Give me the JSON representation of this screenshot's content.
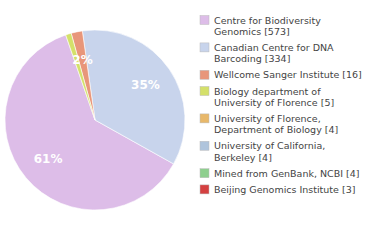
{
  "chart_data": {
    "type": "pie",
    "categories": [
      "Centre for Biodiversity\nGenomics [573]",
      "Canadian Centre for DNA\nBarcoding [334]",
      "Wellcome Sanger Institute [16]",
      "Biology department of\nUniversity of Florence [5]",
      "University of Florence,\nDepartment of Biology [4]",
      "University of California,\nBerkeley [4]",
      "Mined from GenBank, NCBI [4]",
      "Beijing Genomics Institute [3]"
    ],
    "values": [
      61,
      35,
      2,
      1,
      0,
      0,
      0,
      0
    ],
    "value_labels": [
      "61%",
      "35%",
      "2%",
      null,
      null,
      null,
      null,
      null
    ],
    "colors": [
      "#ddbde8",
      "#c8d4ec",
      "#e8967a",
      "#d4e06a",
      "#e8b86a",
      "#afc4dc",
      "#8ecf8e",
      "#d44040"
    ],
    "data_labels": true,
    "legend": "right"
  }
}
